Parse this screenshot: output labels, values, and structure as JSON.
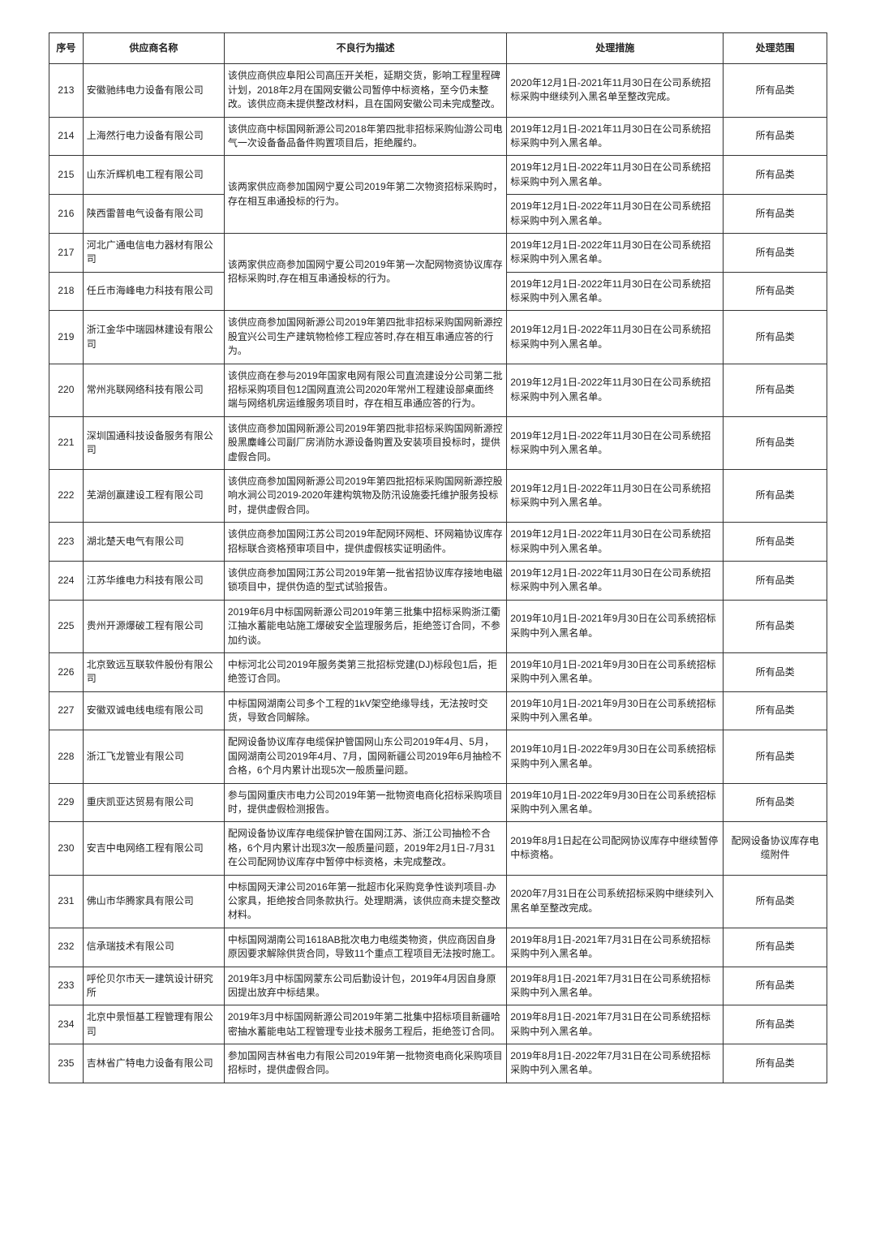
{
  "headers": {
    "seq": "序号",
    "supplier": "供应商名称",
    "desc": "不良行为描述",
    "action": "处理措施",
    "scope": "处理范围"
  },
  "merged": [
    {
      "desc": "该两家供应商参加国网宁夏公司2019年第二次物资招标采购时，存在相互串通投标的行为。",
      "rows": [
        {
          "seq": "215",
          "supplier": "山东沂辉机电工程有限公司",
          "action": "2019年12月1日-2022年11月30日在公司系统招标采购中列入黑名单。",
          "scope": "所有品类"
        },
        {
          "seq": "216",
          "supplier": "陕西雷普电气设备有限公司",
          "action": "2019年12月1日-2022年11月30日在公司系统招标采购中列入黑名单。",
          "scope": "所有品类"
        }
      ]
    },
    {
      "desc": "该两家供应商参加国网宁夏公司2019年第一次配网物资协议库存招标采购时,存在相互串通投标的行为。",
      "rows": [
        {
          "seq": "217",
          "supplier": "河北广通电信电力器材有限公司",
          "action": "2019年12月1日-2022年11月30日在公司系统招标采购中列入黑名单。",
          "scope": "所有品类"
        },
        {
          "seq": "218",
          "supplier": "任丘市海峰电力科技有限公司",
          "action": "2019年12月1日-2022年11月30日在公司系统招标采购中列入黑名单。",
          "scope": "所有品类"
        }
      ]
    }
  ],
  "rows_before": [
    {
      "seq": "213",
      "supplier": "安徽驰纬电力设备有限公司",
      "desc": "该供应商供应阜阳公司高压开关柜，延期交货，影响工程里程碑计划，2018年2月在国网安徽公司暂停中标资格，至今仍未整改。该供应商未提供整改材料，且在国网安徽公司未完成整改。",
      "action": "2020年12月1日-2021年11月30日在公司系统招标采购中继续列入黑名单至整改完成。",
      "scope": "所有品类"
    },
    {
      "seq": "214",
      "supplier": "上海然行电力设备有限公司",
      "desc": "该供应商中标国网新源公司2018年第四批非招标采购仙游公司电气一次设备备品备件购置项目后，拒绝履约。",
      "action": "2019年12月1日-2021年11月30日在公司系统招标采购中列入黑名单。",
      "scope": "所有品类"
    }
  ],
  "rows_after": [
    {
      "seq": "219",
      "supplier": "浙江金华中瑞园林建设有限公司",
      "desc": "该供应商参加国网新源公司2019年第四批非招标采购国网新源控股宜兴公司生产建筑物检修工程应答时,存在相互串通应答的行为。",
      "action": "2019年12月1日-2022年11月30日在公司系统招标采购中列入黑名单。",
      "scope": "所有品类"
    },
    {
      "seq": "220",
      "supplier": "常州兆联网络科技有限公司",
      "desc": "该供应商在参与2019年国家电网有限公司直流建设分公司第二批招标采购项目包12国网直流公司2020年常州工程建设部桌面终端与网络机房运维服务项目时，存在相互串通应答的行为。",
      "action": "2019年12月1日-2022年11月30日在公司系统招标采购中列入黑名单。",
      "scope": "所有品类"
    },
    {
      "seq": "221",
      "supplier": "深圳国通科技设备服务有限公司",
      "desc": "该供应商参加国网新源公司2019年第四批非招标采购国网新源控股黑麋峰公司副厂房消防水源设备购置及安装项目投标时，提供虚假合同。",
      "action": "2019年12月1日-2022年11月30日在公司系统招标采购中列入黑名单。",
      "scope": "所有品类"
    },
    {
      "seq": "222",
      "supplier": "芜湖创赢建设工程有限公司",
      "desc": "该供应商参加国网新源公司2019年第四批招标采购国网新源控股响水涧公司2019-2020年建构筑物及防汛设施委托维护服务投标时，提供虚假合同。",
      "action": "2019年12月1日-2022年11月30日在公司系统招标采购中列入黑名单。",
      "scope": "所有品类"
    },
    {
      "seq": "223",
      "supplier": "湖北楚天电气有限公司",
      "desc": "该供应商参加国网江苏公司2019年配网环网柜、环网箱协议库存招标联合资格预审项目中，提供虚假核实证明函件。",
      "action": "2019年12月1日-2022年11月30日在公司系统招标采购中列入黑名单。",
      "scope": "所有品类"
    },
    {
      "seq": "224",
      "supplier": "江苏华维电力科技有限公司",
      "desc": "该供应商参加国网江苏公司2019年第一批省招协议库存接地电磁锁项目中，提供伪造的型式试验报告。",
      "action": "2019年12月1日-2022年11月30日在公司系统招标采购中列入黑名单。",
      "scope": "所有品类"
    },
    {
      "seq": "225",
      "supplier": "贵州开源爆破工程有限公司",
      "desc": "2019年6月中标国网新源公司2019年第三批集中招标采购浙江衢江抽水蓄能电站施工爆破安全监理服务后，拒绝签订合同，不参加约谈。",
      "action": "2019年10月1日-2021年9月30日在公司系统招标采购中列入黑名单。",
      "scope": "所有品类"
    },
    {
      "seq": "226",
      "supplier": "北京致远互联软件股份有限公司",
      "desc": "中标河北公司2019年服务类第三批招标党建(DJ)标段包1后，拒绝签订合同。",
      "action": "2019年10月1日-2021年9月30日在公司系统招标采购中列入黑名单。",
      "scope": "所有品类"
    },
    {
      "seq": "227",
      "supplier": "安徽双诚电线电缆有限公司",
      "desc": "中标国网湖南公司多个工程的1kV架空绝缘导线，无法按时交货，导致合同解除。",
      "action": "2019年10月1日-2021年9月30日在公司系统招标采购中列入黑名单。",
      "scope": "所有品类"
    },
    {
      "seq": "228",
      "supplier": "浙江飞龙管业有限公司",
      "desc": "配网设备协议库存电缆保护管国网山东公司2019年4月、5月，国网湖南公司2019年4月、7月，国网新疆公司2019年6月抽检不合格，6个月内累计出现5次一般质量问题。",
      "action": "2019年10月1日-2022年9月30日在公司系统招标采购中列入黑名单。",
      "scope": "所有品类"
    },
    {
      "seq": "229",
      "supplier": "重庆凯亚达贸易有限公司",
      "desc": "参与国网重庆市电力公司2019年第一批物资电商化招标采购项目时，提供虚假检测报告。",
      "action": "2019年10月1日-2022年9月30日在公司系统招标采购中列入黑名单。",
      "scope": "所有品类"
    },
    {
      "seq": "230",
      "supplier": "安吉中电网络工程有限公司",
      "desc": "配网设备协议库存电缆保护管在国网江苏、浙江公司抽检不合格，6个月内累计出现3次一般质量问题，2019年2月1日-7月31在公司配网协议库存中暂停中标资格，未完成整改。",
      "action": "2019年8月1日起在公司配网协议库存中继续暂停中标资格。",
      "scope": "配网设备协议库存电缆附件"
    },
    {
      "seq": "231",
      "supplier": "佛山市华腾家具有限公司",
      "desc": "中标国网天津公司2016年第一批超市化采购竞争性谈判项目-办公家具，拒绝按合同条款执行。处理期满，该供应商未提交整改材料。",
      "action": "2020年7月31日在公司系统招标采购中继续列入黑名单至整改完成。",
      "scope": "所有品类"
    },
    {
      "seq": "232",
      "supplier": "信承瑞技术有限公司",
      "desc": "中标国网湖南公司1618AB批次电力电缆类物资，供应商因自身原因要求解除供货合同，导致11个重点工程项目无法按时施工。",
      "action": "2019年8月1日-2021年7月31日在公司系统招标采购中列入黑名单。",
      "scope": "所有品类"
    },
    {
      "seq": "233",
      "supplier": "呼伦贝尔市天一建筑设计研究所",
      "desc": "2019年3月中标国网蒙东公司后勤设计包，2019年4月因自身原因提出放弃中标结果。",
      "action": "2019年8月1日-2021年7月31日在公司系统招标采购中列入黑名单。",
      "scope": "所有品类"
    },
    {
      "seq": "234",
      "supplier": "北京中景恒基工程管理有限公司",
      "desc": "2019年3月中标国网新源公司2019年第二批集中招标项目新疆哈密抽水蓄能电站工程管理专业技术服务工程后，拒绝签订合同。",
      "action": "2019年8月1日-2021年7月31日在公司系统招标采购中列入黑名单。",
      "scope": "所有品类"
    },
    {
      "seq": "235",
      "supplier": "吉林省广特电力设备有限公司",
      "desc": "参加国网吉林省电力有限公司2019年第一批物资电商化采购项目招标时，提供虚假合同。",
      "action": "2019年8月1日-2022年7月31日在公司系统招标采购中列入黑名单。",
      "scope": "所有品类"
    }
  ]
}
